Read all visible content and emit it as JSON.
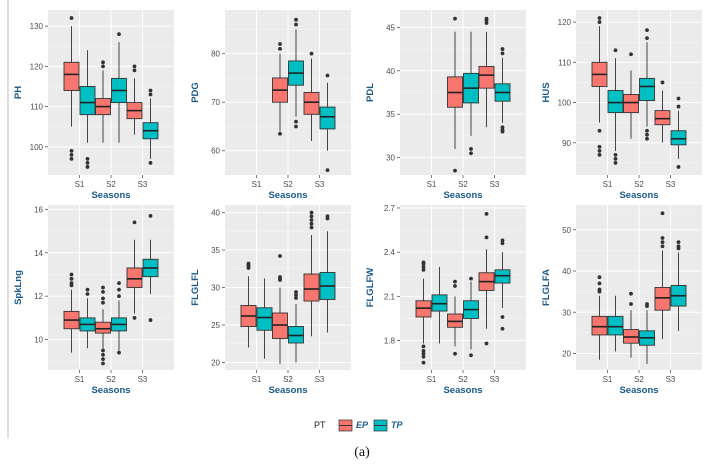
{
  "chart_data": {
    "type": "boxplot",
    "x_title": "Seasons",
    "categories": [
      "S1",
      "S2",
      "S3"
    ],
    "groups": [
      "EP",
      "TP"
    ],
    "colors": {
      "EP": "#f8766d",
      "TP": "#00bfc4"
    },
    "legend": {
      "title": "PT",
      "position": "bottom"
    },
    "caption": "(a)",
    "panels": [
      {
        "ylabel": "PH",
        "ylim": [
          93,
          134
        ],
        "yticks": [
          100,
          110,
          120,
          130
        ],
        "boxes": [
          {
            "season": "S1",
            "group": "EP",
            "min": 105,
            "q1": 114,
            "median": 118,
            "q3": 121,
            "max": 130,
            "outliers": [
              132,
              99,
              98,
              97
            ]
          },
          {
            "season": "S1",
            "group": "TP",
            "min": 101,
            "q1": 108,
            "median": 111,
            "q3": 115,
            "max": 124,
            "outliers": [
              97,
              96,
              95
            ]
          },
          {
            "season": "S2",
            "group": "EP",
            "min": 101,
            "q1": 108,
            "median": 110,
            "q3": 112,
            "max": 119,
            "outliers": [
              121,
              120
            ]
          },
          {
            "season": "S2",
            "group": "TP",
            "min": 101,
            "q1": 111,
            "median": 114,
            "q3": 117,
            "max": 126,
            "outliers": [
              128
            ]
          },
          {
            "season": "S3",
            "group": "EP",
            "min": 103,
            "q1": 107,
            "median": 109,
            "q3": 111,
            "max": 117,
            "outliers": [
              120,
              119
            ]
          },
          {
            "season": "S3",
            "group": "TP",
            "min": 97,
            "q1": 102,
            "median": 104,
            "q3": 106,
            "max": 112,
            "outliers": [
              114,
              113,
              96
            ]
          }
        ]
      },
      {
        "ylabel": "PDG",
        "ylim": [
          55,
          89
        ],
        "yticks": [
          60,
          70,
          80
        ],
        "boxes": [
          {
            "season": "S2",
            "group": "EP",
            "min": 64,
            "q1": 70,
            "median": 72.5,
            "q3": 75,
            "max": 80,
            "outliers": [
              82,
              81,
              63.5
            ]
          },
          {
            "season": "S2",
            "group": "TP",
            "min": 67,
            "q1": 73.5,
            "median": 76,
            "q3": 78.5,
            "max": 85,
            "outliers": [
              87,
              86,
              66,
              65
            ]
          },
          {
            "season": "S3",
            "group": "EP",
            "min": 62,
            "q1": 67.5,
            "median": 70,
            "q3": 72,
            "max": 79,
            "outliers": [
              80
            ]
          },
          {
            "season": "S3",
            "group": "TP",
            "min": 60,
            "q1": 64.5,
            "median": 67,
            "q3": 69,
            "max": 74,
            "outliers": [
              75.5,
              56
            ]
          }
        ]
      },
      {
        "ylabel": "PDL",
        "ylim": [
          28,
          47
        ],
        "yticks": [
          30,
          35,
          40,
          45
        ],
        "boxes": [
          {
            "season": "S2",
            "group": "EP",
            "min": 31,
            "q1": 35.8,
            "median": 37.5,
            "q3": 39.3,
            "max": 44.5,
            "outliers": [
              46,
              28.5
            ]
          },
          {
            "season": "S2",
            "group": "TP",
            "min": 32.5,
            "q1": 36.3,
            "median": 38,
            "q3": 39.7,
            "max": 44.5,
            "outliers": [
              31,
              30.5
            ]
          },
          {
            "season": "S3",
            "group": "EP",
            "min": 33.5,
            "q1": 38,
            "median": 39.5,
            "q3": 40.5,
            "max": 44.5,
            "outliers": [
              46,
              45.8,
              45.5
            ]
          },
          {
            "season": "S3",
            "group": "TP",
            "min": 34,
            "q1": 36.5,
            "median": 37.5,
            "q3": 38.5,
            "max": 41.5,
            "outliers": [
              42.5,
              42,
              33.5,
              33.2,
              33
            ]
          }
        ]
      },
      {
        "ylabel": "HUS",
        "ylim": [
          82,
          123
        ],
        "yticks": [
          90,
          100,
          110,
          120
        ],
        "boxes": [
          {
            "season": "S1",
            "group": "EP",
            "min": 95,
            "q1": 104,
            "median": 107,
            "q3": 110,
            "max": 119,
            "outliers": [
              121,
              120,
              93,
              89,
              88,
              87
            ]
          },
          {
            "season": "S1",
            "group": "TP",
            "min": 88,
            "q1": 97.5,
            "median": 100,
            "q3": 103,
            "max": 111,
            "outliers": [
              113,
              87,
              86,
              85
            ]
          },
          {
            "season": "S2",
            "group": "EP",
            "min": 91,
            "q1": 97.5,
            "median": 100,
            "q3": 102,
            "max": 108,
            "outliers": [
              112
            ]
          },
          {
            "season": "S2",
            "group": "TP",
            "min": 94,
            "q1": 100.5,
            "median": 104,
            "q3": 106,
            "max": 115,
            "outliers": [
              118,
              116,
              93,
              92,
              91
            ]
          },
          {
            "season": "S3",
            "group": "EP",
            "min": 90,
            "q1": 94.5,
            "median": 96,
            "q3": 98,
            "max": 103,
            "outliers": [
              105
            ]
          },
          {
            "season": "S3",
            "group": "TP",
            "min": 86,
            "q1": 89.5,
            "median": 91,
            "q3": 93,
            "max": 98,
            "outliers": [
              101,
              99,
              84
            ]
          }
        ]
      },
      {
        "ylabel": "SpkLng",
        "ylim": [
          8.6,
          16.2
        ],
        "yticks": [
          10,
          12,
          14,
          16
        ],
        "boxes": [
          {
            "season": "S1",
            "group": "EP",
            "min": 9.4,
            "q1": 10.5,
            "median": 10.9,
            "q3": 11.3,
            "max": 12.3,
            "outliers": [
              13,
              12.8,
              12.6,
              12.5
            ]
          },
          {
            "season": "S1",
            "group": "TP",
            "min": 9.6,
            "q1": 10.4,
            "median": 10.7,
            "q3": 11,
            "max": 11.9,
            "outliers": [
              12.3,
              12.1
            ]
          },
          {
            "season": "S2",
            "group": "EP",
            "min": 9.6,
            "q1": 10.3,
            "median": 10.5,
            "q3": 10.8,
            "max": 11.4,
            "outliers": [
              12.4,
              12.2,
              11.9,
              11.7,
              9.5,
              9.3,
              9.1,
              8.9
            ]
          },
          {
            "season": "S2",
            "group": "TP",
            "min": 9.5,
            "q1": 10.4,
            "median": 10.7,
            "q3": 11,
            "max": 11.8,
            "outliers": [
              12.6,
              12.3,
              12,
              9.4
            ]
          },
          {
            "season": "S3",
            "group": "EP",
            "min": 11.2,
            "q1": 12.4,
            "median": 12.8,
            "q3": 13.3,
            "max": 14.6,
            "outliers": [
              15.4,
              11
            ]
          },
          {
            "season": "S3",
            "group": "TP",
            "min": 12.1,
            "q1": 12.9,
            "median": 13.3,
            "q3": 13.7,
            "max": 14.6,
            "outliers": [
              15.7,
              10.9
            ]
          }
        ]
      },
      {
        "ylabel": "FLGLFL",
        "ylim": [
          19,
          41
        ],
        "yticks": [
          20,
          25,
          30,
          35,
          40
        ],
        "boxes": [
          {
            "season": "S1",
            "group": "EP",
            "min": 22,
            "q1": 24.8,
            "median": 26.2,
            "q3": 27.6,
            "max": 31.5,
            "outliers": [
              33.2,
              33,
              32.8,
              32.6
            ]
          },
          {
            "season": "S1",
            "group": "TP",
            "min": 20.5,
            "q1": 24.3,
            "median": 26,
            "q3": 27.3,
            "max": 31.2
          },
          {
            "season": "S2",
            "group": "EP",
            "min": 19.8,
            "q1": 23.2,
            "median": 25,
            "q3": 26.6,
            "max": 30,
            "outliers": [
              34.2,
              31.4,
              31.2,
              31
            ]
          },
          {
            "season": "S2",
            "group": "TP",
            "min": 20,
            "q1": 22.6,
            "median": 23.6,
            "q3": 24.8,
            "max": 27.8,
            "outliers": [
              29.4,
              29,
              28.6
            ]
          },
          {
            "season": "S3",
            "group": "EP",
            "min": 23.5,
            "q1": 28.2,
            "median": 29.8,
            "q3": 31.8,
            "max": 37,
            "outliers": [
              40,
              39.5,
              39,
              38.5,
              38
            ]
          },
          {
            "season": "S3",
            "group": "TP",
            "min": 24,
            "q1": 28.4,
            "median": 30.2,
            "q3": 32,
            "max": 37.5,
            "outliers": [
              39.5,
              39.2
            ]
          }
        ]
      },
      {
        "ylabel": "FLGLFW",
        "ylim": [
          1.6,
          2.72
        ],
        "yticks": [
          1.8,
          2.1,
          2.4,
          2.7
        ],
        "boxes": [
          {
            "season": "S1",
            "group": "EP",
            "min": 1.78,
            "q1": 1.96,
            "median": 2.02,
            "q3": 2.07,
            "max": 2.22,
            "outliers": [
              2.33,
              2.32,
              2.3,
              2.28,
              1.76,
              1.73,
              1.71,
              1.69,
              1.65
            ]
          },
          {
            "season": "S1",
            "group": "TP",
            "min": 1.78,
            "q1": 2,
            "median": 2.05,
            "q3": 2.11,
            "max": 2.3
          },
          {
            "season": "S2",
            "group": "EP",
            "min": 1.76,
            "q1": 1.89,
            "median": 1.93,
            "q3": 1.98,
            "max": 2.1,
            "outliers": [
              2.2,
              2.17,
              1.71
            ]
          },
          {
            "season": "S2",
            "group": "TP",
            "min": 1.74,
            "q1": 1.95,
            "median": 2.01,
            "q3": 2.07,
            "max": 2.2,
            "outliers": [
              2.22,
              1.7
            ]
          },
          {
            "season": "S3",
            "group": "EP",
            "min": 1.88,
            "q1": 2.14,
            "median": 2.2,
            "q3": 2.26,
            "max": 2.42,
            "outliers": [
              2.66,
              2.5,
              1.78
            ]
          },
          {
            "season": "S3",
            "group": "TP",
            "min": 2.02,
            "q1": 2.19,
            "median": 2.24,
            "q3": 2.28,
            "max": 2.4,
            "outliers": [
              2.48,
              2.46,
              1.96,
              1.88
            ]
          }
        ]
      },
      {
        "ylabel": "FLGLFA",
        "ylim": [
          16,
          56
        ],
        "yticks": [
          20,
          30,
          40,
          50
        ],
        "boxes": [
          {
            "season": "S1",
            "group": "EP",
            "min": 18.5,
            "q1": 24.5,
            "median": 26.5,
            "q3": 29,
            "max": 34,
            "outliers": [
              38.5,
              37,
              35.5,
              35
            ]
          },
          {
            "season": "S1",
            "group": "TP",
            "min": 20.5,
            "q1": 24.5,
            "median": 26.5,
            "q3": 29,
            "max": 34
          },
          {
            "season": "S2",
            "group": "EP",
            "min": 19,
            "q1": 22.5,
            "median": 24,
            "q3": 25.8,
            "max": 30.5,
            "outliers": [
              34.5,
              32
            ]
          },
          {
            "season": "S2",
            "group": "TP",
            "min": 17.5,
            "q1": 22,
            "median": 23.8,
            "q3": 25.5,
            "max": 30.5,
            "outliers": [
              32,
              31.5
            ]
          },
          {
            "season": "S3",
            "group": "EP",
            "min": 23.5,
            "q1": 30.5,
            "median": 33.5,
            "q3": 36,
            "max": 45,
            "outliers": [
              54,
              48,
              47,
              46
            ]
          },
          {
            "season": "S3",
            "group": "TP",
            "min": 25.5,
            "q1": 31.5,
            "median": 34,
            "q3": 36.5,
            "max": 44.5,
            "outliers": [
              47,
              46,
              45.5
            ]
          }
        ]
      }
    ]
  }
}
